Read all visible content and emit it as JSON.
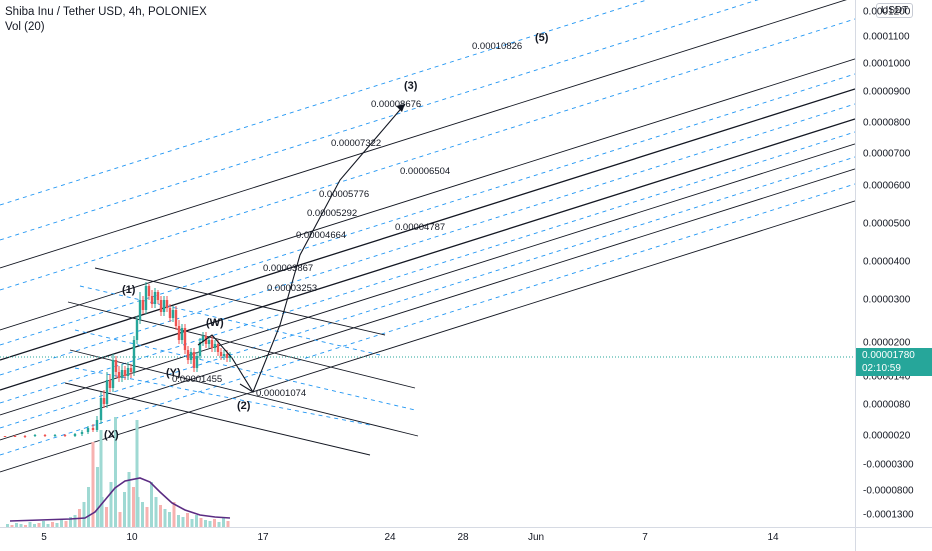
{
  "header": {
    "symbol_line": "Shiba Inu / Tether USD, 4h, POLONIEX",
    "volume_line": "Vol (20)"
  },
  "price_axis": {
    "currency_button": "USDT",
    "ticks": [
      "0.0001200",
      "0.0001100",
      "0.0001000",
      "0.0000900",
      "0.0000800",
      "0.0000700",
      "0.0000600",
      "0.0000500",
      "0.0000400",
      "0.0000300",
      "0.0000200",
      "0.0000140",
      "0.0000080",
      "0.0000020",
      "-0.0000300",
      "-0.0000800",
      "-0.0001300"
    ],
    "last_price": "0.00001780",
    "countdown": "02:10:59"
  },
  "time_axis": {
    "ticks": [
      "5",
      "10",
      "17",
      "24",
      "28",
      "Jun",
      "7",
      "14"
    ]
  },
  "chart_data": {
    "type": "line",
    "title": "Shiba Inu / Tether USD, 4h, POLONIEX",
    "last_price": 1.78e-05,
    "wave_labels": [
      "(X)",
      "(1)",
      "(Y)",
      "(W)",
      "(2)",
      "(3)",
      "(5)"
    ],
    "level_labels": [
      "0.00010826",
      "0.00008676",
      "0.00007322",
      "0.00006504",
      "0.00005776",
      "0.00005292",
      "0.00004664",
      "0.00004787",
      "0.00003867",
      "0.00003253",
      "0.00001455",
      "0.00001074"
    ],
    "volume_series_name": "Vol (20)",
    "colors": {
      "up": "#26a69a",
      "down": "#ef5350",
      "fib_dashed": "#2196f3",
      "channel": "#131722",
      "vol_ma": "#5b2c83"
    }
  }
}
